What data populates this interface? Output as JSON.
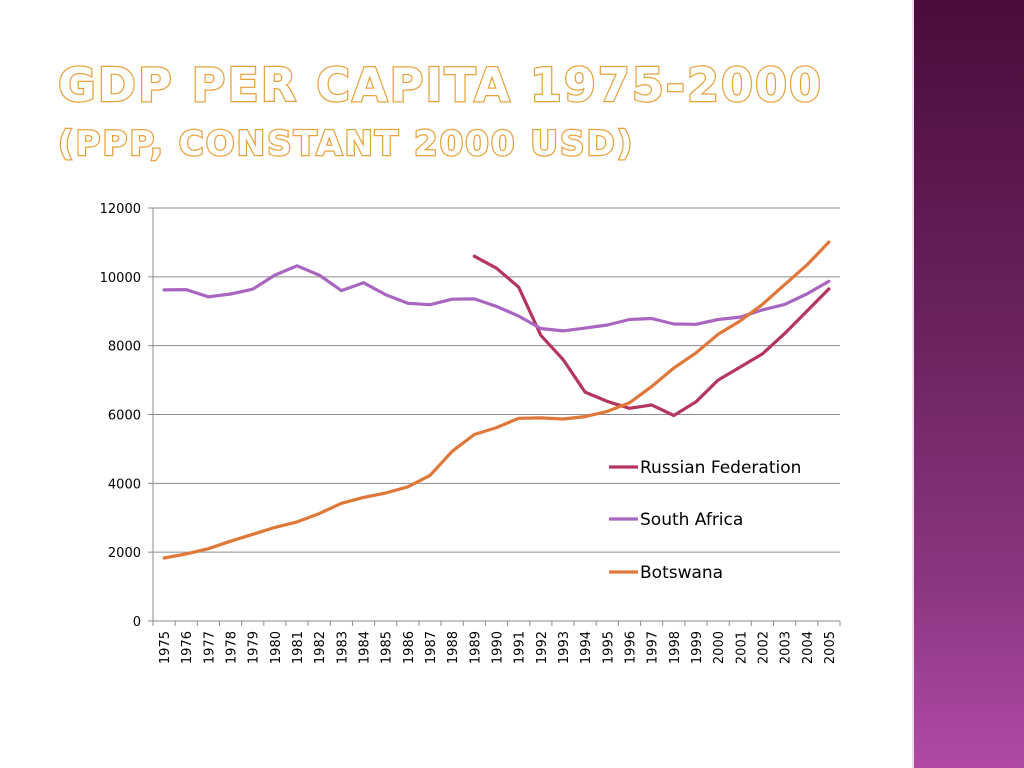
{
  "slide": {
    "title_line_1": "GDP PER CAPITA 1975-2000",
    "title_line_2": "(PPP, CONSTANT 2000 USD)",
    "accent_color": "#e8a23c",
    "side_bar_colors": [
      "#4a0c3a",
      "#b04aa5"
    ]
  },
  "chart_data": {
    "type": "line",
    "title": "GDP PER CAPITA 1975-2000 (PPP, CONSTANT 2000 USD)",
    "xlabel": "",
    "ylabel": "",
    "x": [
      "1975",
      "1976",
      "1977",
      "1978",
      "1979",
      "1980",
      "1981",
      "1982",
      "1983",
      "1984",
      "1985",
      "1986",
      "1987",
      "1988",
      "1989",
      "1990",
      "1991",
      "1992",
      "1993",
      "1994",
      "1995",
      "1996",
      "1997",
      "1998",
      "1999",
      "2000",
      "2001",
      "2002",
      "2003",
      "2004",
      "2005"
    ],
    "ylim": [
      0,
      12000
    ],
    "yticks": [
      0,
      2000,
      4000,
      6000,
      8000,
      10000,
      12000
    ],
    "grid": true,
    "legend_position": "right",
    "series": [
      {
        "name": "Russian Federation",
        "color": "#b5355e",
        "values": [
          null,
          null,
          null,
          null,
          null,
          null,
          null,
          null,
          null,
          null,
          null,
          null,
          null,
          null,
          10600,
          10250,
          9700,
          8300,
          7600,
          6650,
          6380,
          6180,
          6280,
          5970,
          6370,
          7000,
          7380,
          7760,
          8350,
          9000,
          9650
        ]
      },
      {
        "name": "South Africa",
        "color": "#a966c1",
        "values": [
          9620,
          9630,
          9420,
          9500,
          9640,
          10050,
          10320,
          10050,
          9600,
          9830,
          9480,
          9230,
          9190,
          9350,
          9360,
          9140,
          8860,
          8500,
          8430,
          8510,
          8600,
          8760,
          8790,
          8630,
          8620,
          8760,
          8830,
          9040,
          9200,
          9500,
          9870
        ]
      },
      {
        "name": "Botswana",
        "color": "#df7838",
        "values": [
          1830,
          1950,
          2100,
          2320,
          2520,
          2720,
          2880,
          3120,
          3420,
          3590,
          3720,
          3900,
          4230,
          4930,
          5420,
          5620,
          5890,
          5900,
          5870,
          5940,
          6090,
          6340,
          6810,
          7350,
          7790,
          8330,
          8720,
          9200,
          9770,
          10340,
          11010
        ]
      }
    ]
  }
}
